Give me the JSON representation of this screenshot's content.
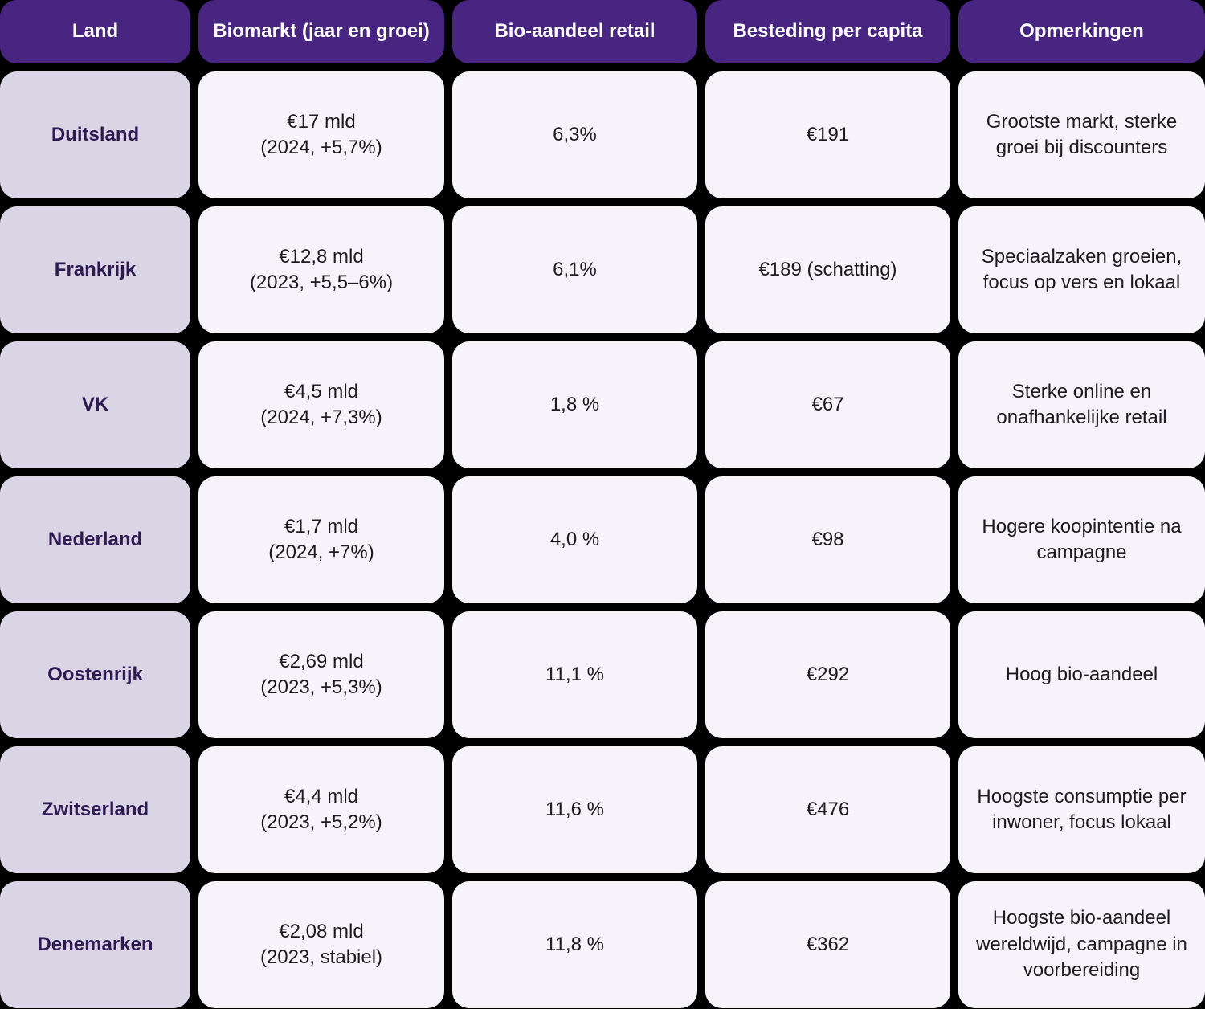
{
  "colors": {
    "page_bg": "#000000",
    "header_bg": "#482580",
    "header_text": "#ffffff",
    "land_cell_bg": "#dad5e4",
    "land_text": "#2e1a52",
    "data_cell_bg": "#f6f3fb",
    "data_text": "#1c1c1c"
  },
  "chart_data": {
    "type": "table",
    "title": "",
    "columns": [
      "Land",
      "Biomarkt (jaar en groei)",
      "Bio-aandeel retail",
      "Besteding per capita",
      "Opmerkingen"
    ],
    "rows": [
      {
        "land": "Duitsland",
        "biomarkt_value": "€17 mld",
        "biomarkt_detail": "(2024, +5,7%)",
        "bio_aandeel": "6,3%",
        "besteding": "€191",
        "opmerkingen": "Grootste markt, sterke groei bij discounters"
      },
      {
        "land": "Frankrijk",
        "biomarkt_value": "€12,8 mld",
        "biomarkt_detail": "(2023, +5,5–6%)",
        "bio_aandeel": "6,1%",
        "besteding": "€189 (schatting)",
        "opmerkingen": "Speciaalzaken groeien, focus op vers en lokaal"
      },
      {
        "land": "VK",
        "biomarkt_value": "€4,5 mld",
        "biomarkt_detail": "(2024, +7,3%)",
        "bio_aandeel": "1,8 %",
        "besteding": "€67",
        "opmerkingen": "Sterke online en onafhankelijke retail"
      },
      {
        "land": "Nederland",
        "biomarkt_value": "€1,7 mld",
        "biomarkt_detail": "(2024, +7%)",
        "bio_aandeel": "4,0 %",
        "besteding": "€98",
        "opmerkingen": "Hogere koopintentie na campagne"
      },
      {
        "land": "Oostenrijk",
        "biomarkt_value": "€2,69 mld",
        "biomarkt_detail": "(2023, +5,3%)",
        "bio_aandeel": "11,1 %",
        "besteding": "€292",
        "opmerkingen": "Hoog bio-aandeel"
      },
      {
        "land": "Zwitserland",
        "biomarkt_value": "€4,4 mld",
        "biomarkt_detail": "(2023, +5,2%)",
        "bio_aandeel": "11,6 %",
        "besteding": "€476",
        "opmerkingen": "Hoogste consumptie per inwoner, focus lokaal"
      },
      {
        "land": "Denemarken",
        "biomarkt_value": "€2,08 mld",
        "biomarkt_detail": "(2023, stabiel)",
        "bio_aandeel": "11,8 %",
        "besteding": "€362",
        "opmerkingen": "Hoogste bio-aandeel wereldwijd, campagne in voorbereiding"
      }
    ]
  }
}
